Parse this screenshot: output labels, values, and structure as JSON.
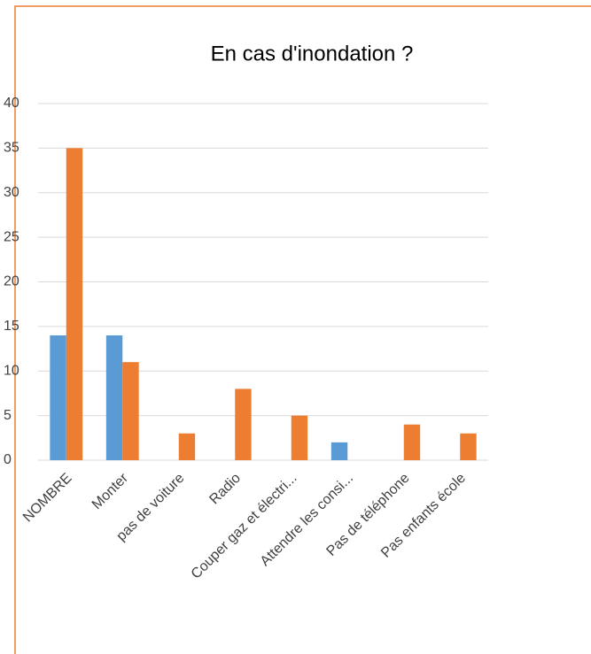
{
  "chart_data": {
    "type": "bar",
    "title": "En cas  d'inondation ?",
    "categories": [
      "NOMBRE",
      "Monter",
      "pas de voiture",
      "Radio",
      "Couper gaz et électri...",
      "Attendre les consi...",
      "Pas de téléphone",
      "Pas enfants école"
    ],
    "series": [
      {
        "color": "#5b9bd5",
        "values": [
          14,
          14,
          0,
          0,
          0,
          2,
          0,
          0
        ]
      },
      {
        "color": "#ed7d31",
        "values": [
          35,
          11,
          3,
          8,
          5,
          0,
          4,
          3
        ]
      }
    ],
    "ylim": [
      0,
      40
    ],
    "yticks": [
      0,
      5,
      10,
      15,
      20,
      25,
      30,
      35,
      40
    ],
    "grid": true
  }
}
